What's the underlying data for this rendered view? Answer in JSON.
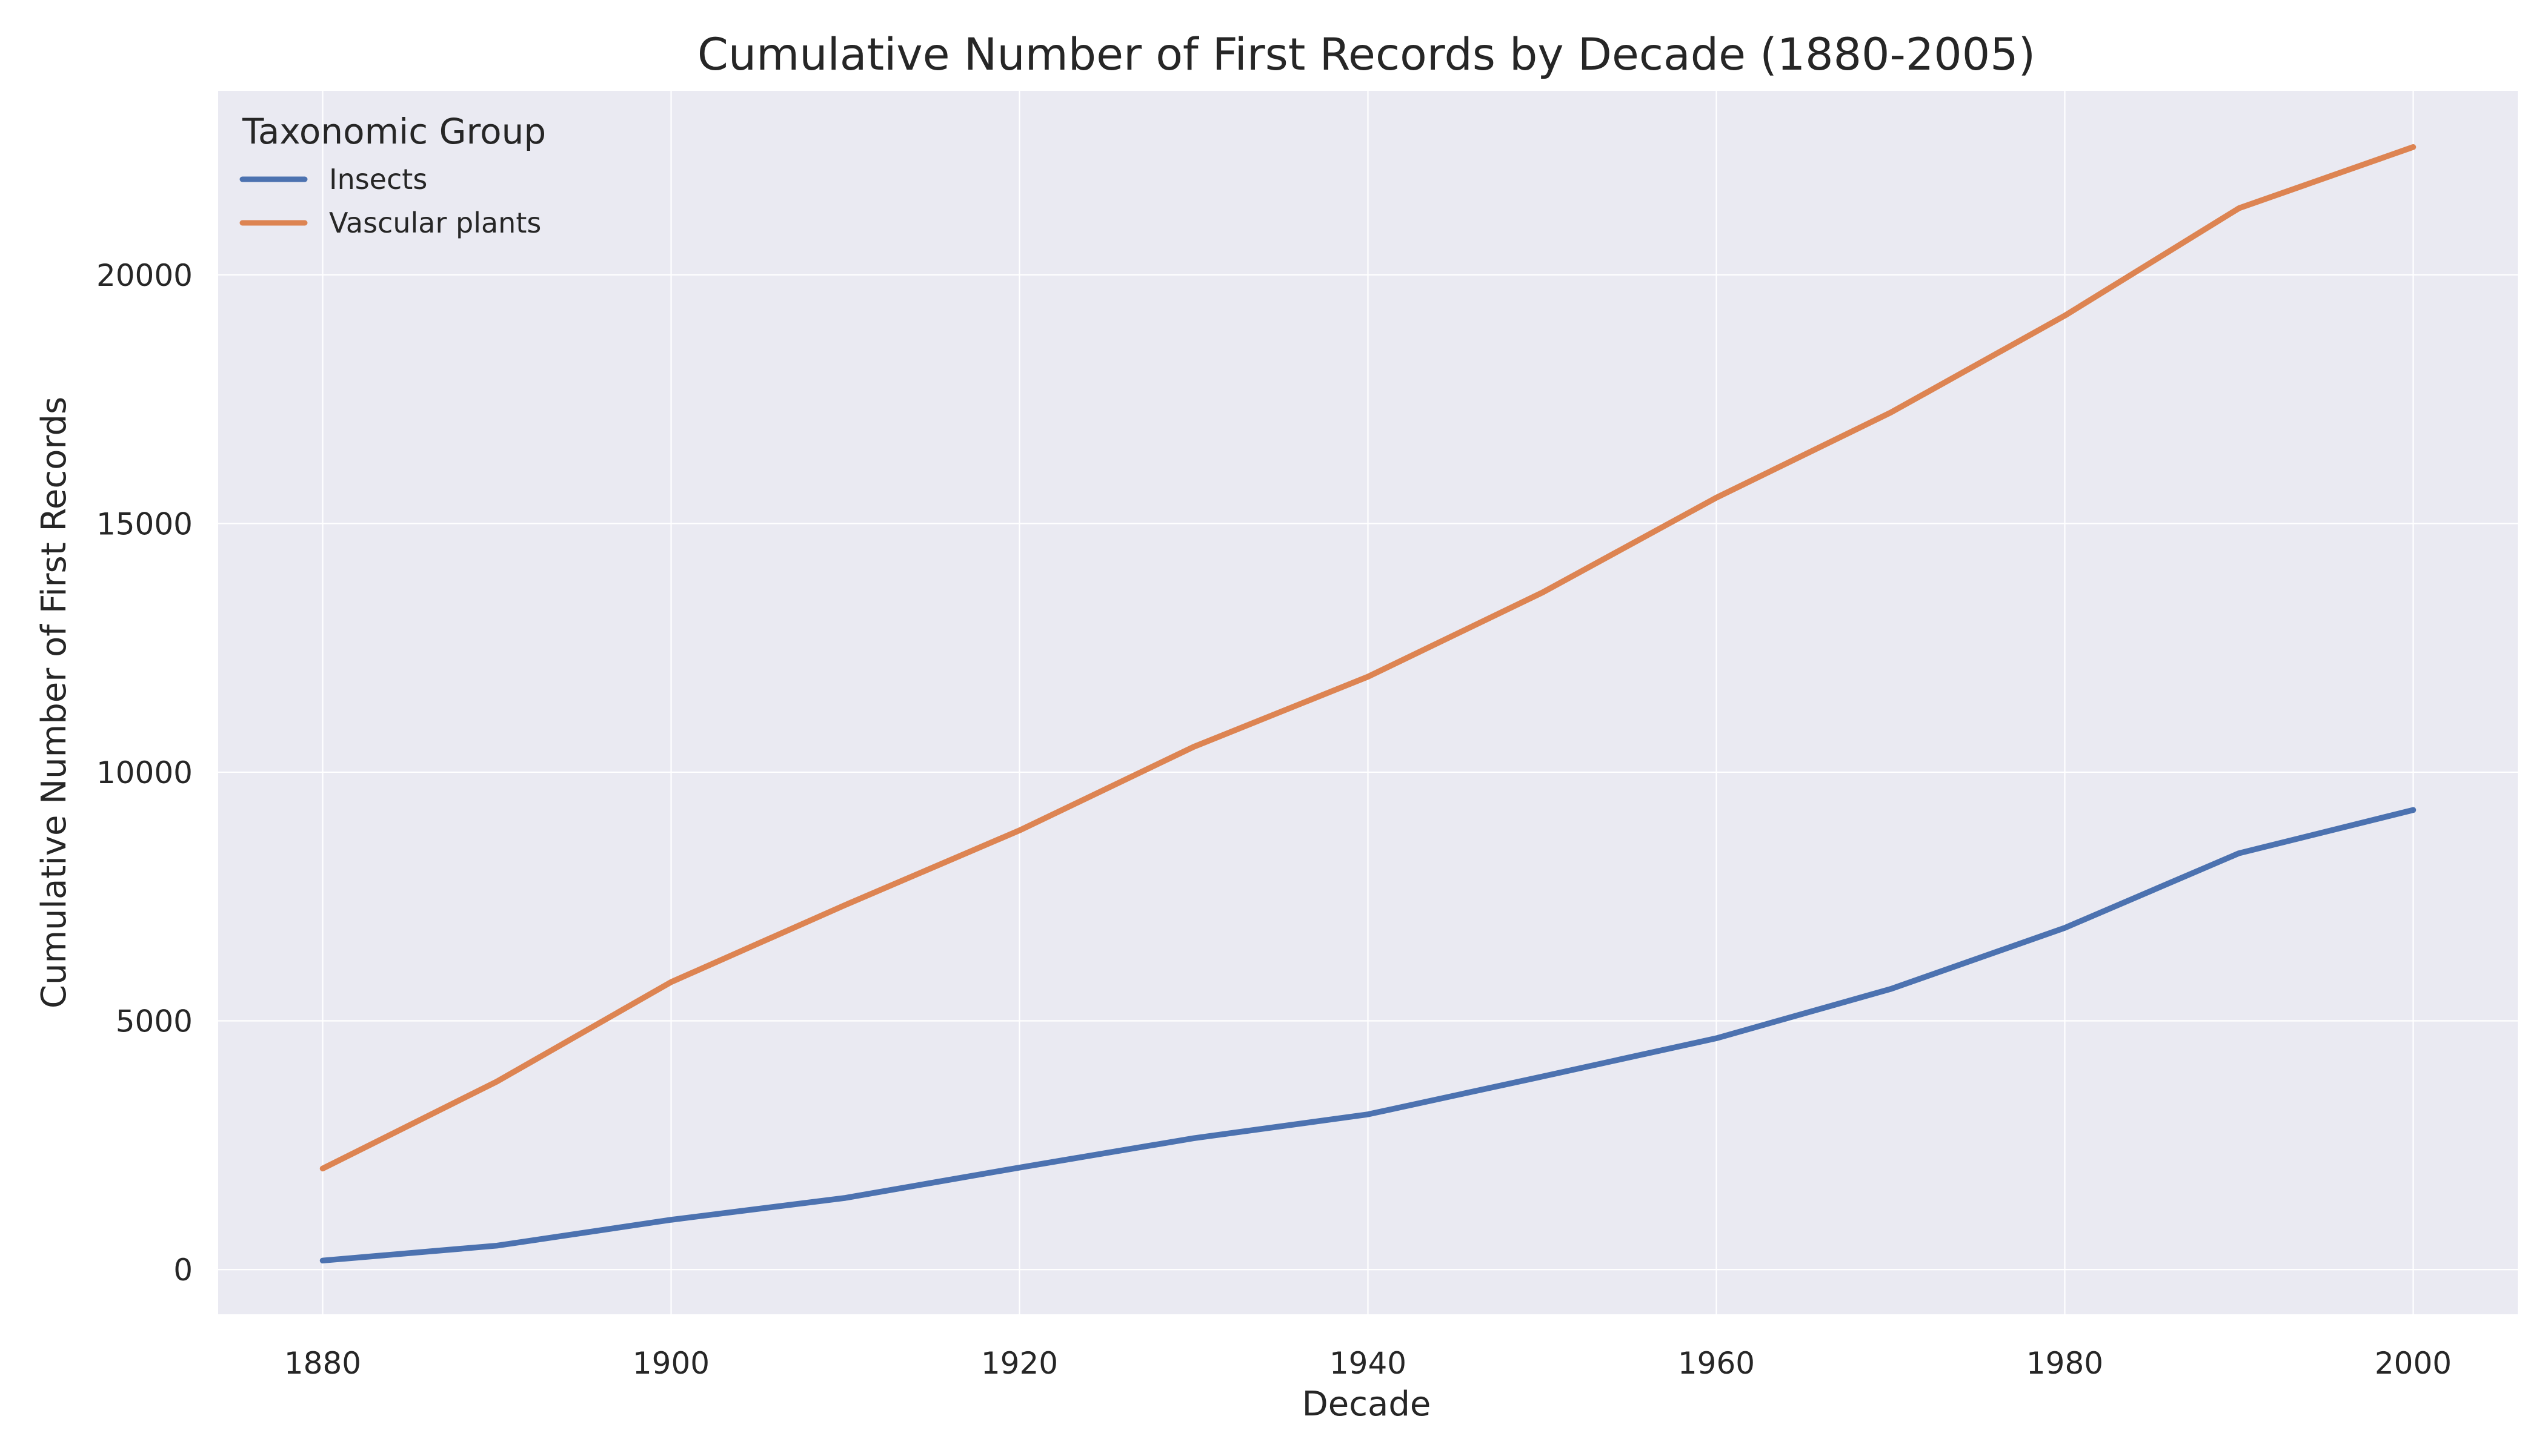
{
  "chart_data": {
    "type": "line",
    "title": "Cumulative Number of First Records by Decade (1880-2005)",
    "xlabel": "Decade",
    "ylabel": "Cumulative Number of First Records",
    "x": [
      1880,
      1890,
      1900,
      1910,
      1920,
      1930,
      1940,
      1950,
      1960,
      1970,
      1980,
      1990,
      2000
    ],
    "xticks": [
      1880,
      1900,
      1920,
      1940,
      1960,
      1980,
      2000
    ],
    "yticks": [
      0,
      5000,
      10000,
      15000,
      20000
    ],
    "xlim": [
      1874,
      2006
    ],
    "ylim": [
      -900,
      23700
    ],
    "grid": true,
    "legend": {
      "title": "Taxonomic Group",
      "position": "top-left"
    },
    "series": [
      {
        "name": "Insects",
        "color": "#4c72b0",
        "values": [
          180,
          480,
          1000,
          1440,
          2050,
          2640,
          3120,
          3880,
          4650,
          5640,
          6870,
          8370,
          9240
        ]
      },
      {
        "name": "Vascular plants",
        "color": "#dd8452",
        "values": [
          2030,
          3780,
          5780,
          7330,
          8830,
          10510,
          11920,
          13610,
          15520,
          17230,
          19180,
          21340,
          22570
        ]
      }
    ]
  }
}
